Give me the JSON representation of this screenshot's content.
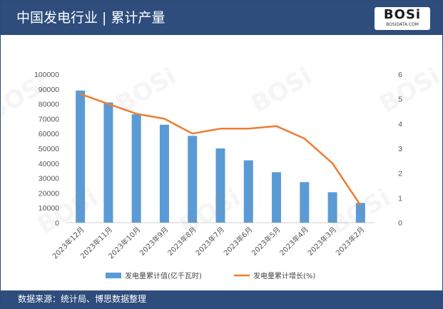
{
  "header": {
    "title": "中国发电行业 | 累计产量",
    "logo_text": "BOSi",
    "logo_sub": "BOSIDATA.COM"
  },
  "footer": {
    "source": "数据来源：统计局、博思数据整理"
  },
  "colors": {
    "header_bg": "#2e4d7c",
    "bar": "#5b9bd5",
    "line": "#ed7d31"
  },
  "chart_data": {
    "type": "bar",
    "categories": [
      "2023年12月",
      "2023年11月",
      "2023年10月",
      "2023年9月",
      "2023年8月",
      "2023年7月",
      "2023年6月",
      "2023年5月",
      "2023年4月",
      "2023年3月",
      "2023年2月"
    ],
    "series": [
      {
        "name": "发电量累计值(亿千瓦时)",
        "type": "bar",
        "axis": "left",
        "values": [
          89000,
          81000,
          73000,
          66000,
          58500,
          50000,
          42000,
          34000,
          27300,
          20500,
          13300
        ]
      },
      {
        "name": "发电量累计增长(%)",
        "type": "line",
        "axis": "right",
        "values": [
          5.2,
          4.8,
          4.4,
          4.2,
          3.6,
          3.8,
          3.8,
          3.9,
          3.4,
          2.4,
          0.7
        ]
      }
    ],
    "y_left": {
      "ylim": [
        0,
        100000
      ],
      "ticks": [
        "0",
        "10000",
        "20000",
        "30000",
        "40000",
        "50000",
        "60000",
        "70000",
        "80000",
        "90000",
        "100000"
      ]
    },
    "y_right": {
      "ylim": [
        0,
        6
      ],
      "ticks": [
        "0",
        "1",
        "2",
        "3",
        "4",
        "5",
        "6"
      ]
    },
    "grid": false,
    "legend": "bottom"
  }
}
